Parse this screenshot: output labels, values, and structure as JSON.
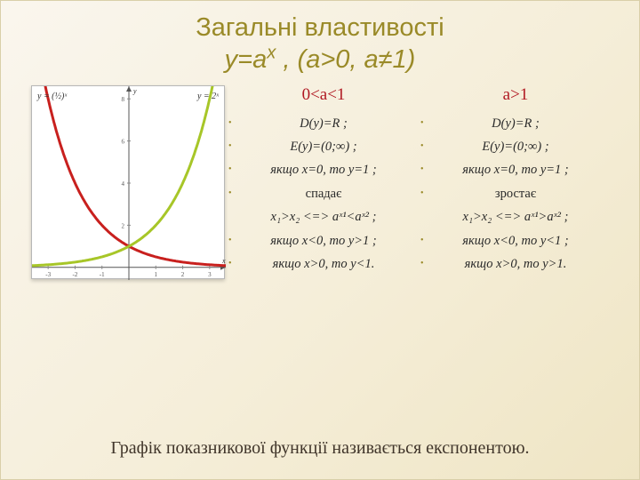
{
  "title": {
    "line1": "Загальні властивості",
    "line2_html": "y=a<sup>x</sup> , (a>0, a≠1)"
  },
  "chart": {
    "bg": "#ffffff",
    "border": "#b7b7b7",
    "axis_color": "#555555",
    "tick_color": "#888888",
    "curve1_color": "#c8201e",
    "curve2_color": "#a7c628",
    "line_width": 3,
    "formula_left": "y = (½)ˣ",
    "formula_right": "y = 2ˣ",
    "x_ticks": [
      "-3",
      "-2",
      "-1",
      "1",
      "2",
      "3"
    ],
    "y_ticks": [
      "2",
      "4",
      "6",
      "8"
    ]
  },
  "col1": {
    "heading": "0<a<1",
    "items": [
      "D(y)=R ;",
      "E(y)=(0;∞) ;",
      "якщо x=0, то y=1 ;",
      "спадає",
      "x₁>x₂ <=> aˣ¹<aˣ² ;",
      "якщо  x<0, то y>1 ;",
      "якщо x>0, то y<1."
    ]
  },
  "col2": {
    "heading": "a>1",
    "items": [
      "D(y)=R ;",
      "E(y)=(0;∞) ;",
      "якщо x=0, то y=1 ;",
      "зростає",
      "x₁>x₂ <=> aˣ¹>aˣ² ;",
      "якщо  x<0, то y<1 ;",
      "якщо x>0, то y>1."
    ]
  },
  "footer": "Графік показникової функції називається експонентою."
}
